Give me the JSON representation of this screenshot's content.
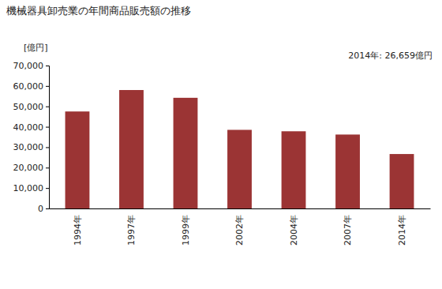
{
  "chart_data": {
    "type": "bar",
    "title": "機械器具卸売業の年間商品販売額の推移",
    "y_label": "[億円]",
    "annotation": "2014年: 26,659億円",
    "categories": [
      "1994年",
      "1997年",
      "1999年",
      "2002年",
      "2004年",
      "2007年",
      "2014年"
    ],
    "values": [
      47500,
      58000,
      54200,
      38500,
      37800,
      36200,
      26659
    ],
    "color": "#9b3434",
    "ylim": [
      0,
      70000
    ],
    "yticks": [
      0,
      {
        "value": 10000,
        "label": "10,000"
      },
      {
        "value": 20000,
        "label": "20,000"
      },
      {
        "value": 30000,
        "label": "30,000"
      },
      {
        "value": 40000,
        "label": "40,000"
      },
      {
        "value": 50000,
        "label": "50,000"
      },
      {
        "value": 60000,
        "label": "60,000"
      },
      {
        "value": 70000,
        "label": "70,000"
      }
    ],
    "grid": false
  }
}
